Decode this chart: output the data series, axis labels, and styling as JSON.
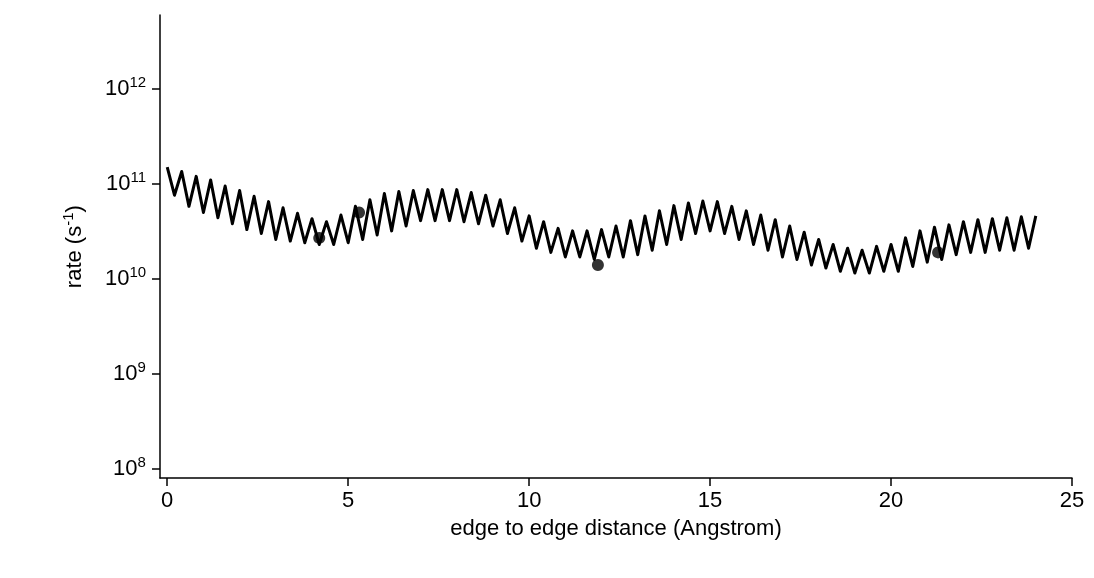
{
  "chart_data": {
    "type": "line",
    "xlabel": "edge to edge distance (Angstrom)",
    "ylabel": "rate (s$^{-1}$)",
    "log": "y",
    "grid": false,
    "xlim": [
      -0.2,
      25
    ],
    "xticks": [
      0,
      5,
      10,
      15,
      20,
      25
    ],
    "ylim": [
      80000000.0,
      6000000000000.0
    ],
    "yticks": [
      {
        "value": 100000000.0,
        "label": "10$^{8}$"
      },
      {
        "value": 1000000000.0,
        "label": "10$^{9}$"
      },
      {
        "value": 10000000000.0,
        "label": "10$^{10}$"
      },
      {
        "value": 100000000000.0,
        "label": "10$^{11}$"
      },
      {
        "value": 1000000000000.0,
        "label": "10$^{12}$"
      }
    ],
    "series": [
      {
        "color": "#000000",
        "marker": "none",
        "line_style": "solid",
        "x": [
          0,
          0.2,
          0.4,
          0.6,
          0.8,
          1,
          1.2,
          1.4,
          1.6,
          1.8,
          2,
          2.2,
          2.4,
          2.6,
          2.8,
          3,
          3.2,
          3.4,
          3.6,
          3.8,
          4,
          4.2,
          4.4,
          4.6,
          4.8,
          5,
          5.2,
          5.4,
          5.6,
          5.8,
          6,
          6.2,
          6.4,
          6.6,
          6.8,
          7,
          7.2,
          7.4,
          7.6,
          7.8,
          8,
          8.2,
          8.4,
          8.6,
          8.8,
          9,
          9.2,
          9.4,
          9.6,
          9.8,
          10,
          10.2,
          10.4,
          10.6,
          10.8,
          11,
          11.2,
          11.4,
          11.6,
          11.8,
          12,
          12.2,
          12.4,
          12.6,
          12.8,
          13,
          13.2,
          13.4,
          13.6,
          13.8,
          14,
          14.2,
          14.4,
          14.6,
          14.8,
          15,
          15.2,
          15.4,
          15.6,
          15.8,
          16,
          16.2,
          16.4,
          16.6,
          16.8,
          17,
          17.2,
          17.4,
          17.6,
          17.8,
          18,
          18.2,
          18.4,
          18.6,
          18.8,
          19,
          19.2,
          19.4,
          19.6,
          19.8,
          20,
          20.2,
          20.4,
          20.6,
          20.8,
          21,
          21.2,
          21.4,
          21.6,
          21.8,
          22,
          22.2,
          22.4,
          22.6,
          22.8,
          23,
          23.2,
          23.4,
          23.6,
          23.8,
          24
        ],
        "values": [
          150000000000.0,
          76000000000.0,
          135000000000.0,
          58000000000.0,
          120000000000.0,
          50000000000.0,
          110000000000.0,
          44000000000.0,
          95000000000.0,
          38000000000.0,
          85000000000.0,
          33000000000.0,
          74000000000.0,
          30000000000.0,
          65000000000.0,
          26000000000.0,
          56000000000.0,
          25000000000.0,
          49000000000.0,
          24000000000.0,
          43000000000.0,
          23000000000.0,
          40000000000.0,
          23000000000.0,
          47000000000.0,
          24000000000.0,
          58000000000.0,
          26000000000.0,
          68000000000.0,
          29000000000.0,
          79000000000.0,
          32000000000.0,
          83000000000.0,
          36000000000.0,
          85000000000.0,
          41000000000.0,
          87000000000.0,
          41000000000.0,
          87000000000.0,
          41000000000.0,
          87000000000.0,
          40000000000.0,
          81000000000.0,
          38000000000.0,
          76000000000.0,
          36000000000.0,
          68000000000.0,
          30000000000.0,
          56000000000.0,
          25000000000.0,
          46000000000.0,
          21000000000.0,
          40000000000.0,
          19000000000.0,
          34000000000.0,
          17000000000.0,
          32000000000.0,
          17000000000.0,
          32000000000.0,
          16000000000.0,
          33000000000.0,
          17000000000.0,
          36000000000.0,
          17000000000.0,
          41000000000.0,
          18000000000.0,
          46000000000.0,
          20000000000.0,
          52000000000.0,
          23000000000.0,
          59000000000.0,
          26000000000.0,
          63000000000.0,
          30000000000.0,
          66000000000.0,
          32000000000.0,
          65000000000.0,
          30000000000.0,
          58000000000.0,
          26000000000.0,
          52000000000.0,
          23000000000.0,
          47000000000.0,
          20000000000.0,
          42000000000.0,
          17000000000.0,
          36000000000.0,
          16000000000.0,
          31000000000.0,
          14000000000.0,
          26000000000.0,
          13000000000.0,
          23000000000.0,
          12000000000.0,
          21000000000.0,
          11500000000.0,
          20000000000.0,
          11500000000.0,
          22000000000.0,
          12000000000.0,
          23000000000.0,
          12000000000.0,
          27000000000.0,
          13500000000.0,
          32000000000.0,
          15000000000.0,
          35000000000.0,
          16000000000.0,
          37000000000.0,
          18000000000.0,
          40000000000.0,
          19000000000.0,
          42000000000.0,
          19000000000.0,
          43000000000.0,
          20000000000.0,
          44000000000.0,
          20000000000.0,
          45000000000.0,
          21000000000.0,
          46000000000.0
        ]
      },
      {
        "type": "scatter",
        "color": "#000000",
        "marker": "circle",
        "x": [
          4.2,
          5.3,
          11.9,
          21.3
        ],
        "values": [
          27000000000.0,
          50000000000.0,
          14000000000.0,
          19000000000.0
        ]
      }
    ]
  }
}
